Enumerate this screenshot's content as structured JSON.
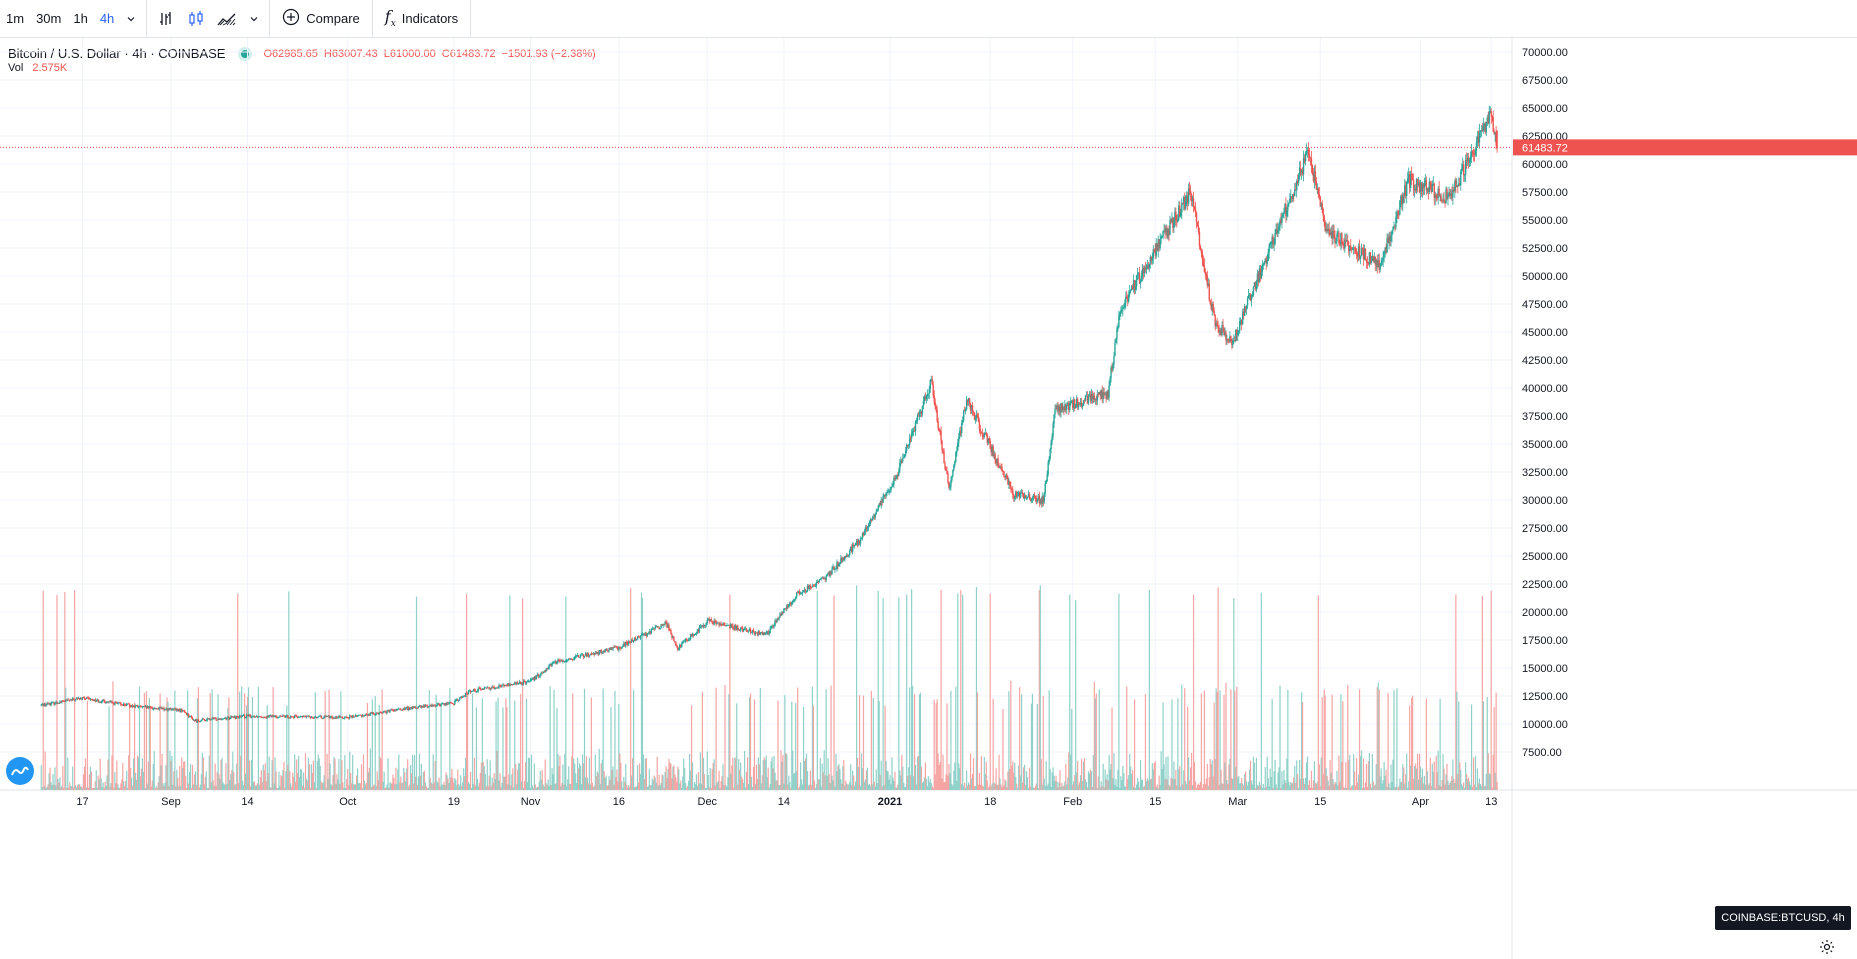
{
  "toolbar": {
    "timeframes": [
      "1m",
      "30m",
      "1h",
      "4h"
    ],
    "active_timeframe": "4h",
    "compare_label": "Compare",
    "indicators_label": "Indicators",
    "icons": [
      "chevron-down-icon",
      "bar-chart-icon",
      "candles-icon",
      "area-chart-icon",
      "chevron-down-icon",
      "plus-circle-icon",
      "fx-icon"
    ]
  },
  "legend": {
    "symbol": "Bitcoin / U.S. Dollar · 4h · COINBASE",
    "o_label": "O",
    "o": "62985.65",
    "h_label": "H",
    "h": "63007.43",
    "l_label": "L",
    "l": "61000.00",
    "c_label": "C",
    "c": "61483.72",
    "change": "−1501.93 (−2.38%)",
    "vol_label": "Vol",
    "vol": "2.575K"
  },
  "colors": {
    "up": "#26a69a",
    "down": "#ef5350",
    "up_vol": "#8fd1c9",
    "down_vol": "#f5a5a3",
    "price_label_bg": "#ef5350",
    "grid": "#f0f3fa"
  },
  "tooltip": "COINBASE:BTCUSD, 4h",
  "chart_data": {
    "type": "candlestick",
    "title": "Bitcoin / U.S. Dollar · 4h · COINBASE",
    "ylim": [
      6250,
      71250
    ],
    "y_ticks": [
      "70000.00",
      "67500.00",
      "65000.00",
      "62500.00",
      "60000.00",
      "57500.00",
      "55000.00",
      "52500.00",
      "50000.00",
      "47500.00",
      "45000.00",
      "42500.00",
      "40000.00",
      "37500.00",
      "35000.00",
      "32500.00",
      "30000.00",
      "27500.00",
      "25000.00",
      "22500.00",
      "20000.00",
      "17500.00",
      "15000.00",
      "12500.00",
      "10000.00",
      "7500.00"
    ],
    "x_ticks": [
      "17",
      "Sep",
      "14",
      "Oct",
      "19",
      "Nov",
      "16",
      "Dec",
      "14",
      "2021",
      "18",
      "Feb",
      "15",
      "Mar",
      "15",
      "Apr",
      "13"
    ],
    "last_price": "61483.72",
    "close_series": {
      "name": "BTCUSD",
      "approx_path": [
        [
          "2020-08-10",
          11700
        ],
        [
          "2020-08-17",
          12300
        ],
        [
          "2020-08-27",
          11500
        ],
        [
          "2020-09-03",
          11200
        ],
        [
          "2020-09-05",
          10300
        ],
        [
          "2020-09-14",
          10700
        ],
        [
          "2020-10-01",
          10600
        ],
        [
          "2020-10-10",
          11300
        ],
        [
          "2020-10-19",
          11900
        ],
        [
          "2020-10-22",
          13000
        ],
        [
          "2020-11-01",
          13800
        ],
        [
          "2020-11-05",
          15500
        ],
        [
          "2020-11-16",
          16800
        ],
        [
          "2020-11-24",
          19000
        ],
        [
          "2020-11-26",
          16800
        ],
        [
          "2020-12-01",
          19200
        ],
        [
          "2020-12-11",
          18000
        ],
        [
          "2020-12-16",
          21500
        ],
        [
          "2020-12-21",
          23000
        ],
        [
          "2020-12-27",
          26500
        ],
        [
          "2021-01-02",
          32000
        ],
        [
          "2021-01-08",
          40500
        ],
        [
          "2021-01-11",
          31000
        ],
        [
          "2021-01-14",
          39000
        ],
        [
          "2021-01-22",
          30500
        ],
        [
          "2021-01-27",
          30000
        ],
        [
          "2021-01-29",
          38000
        ],
        [
          "2021-02-07",
          39500
        ],
        [
          "2021-02-09",
          47000
        ],
        [
          "2021-02-21",
          57500
        ],
        [
          "2021-02-25",
          46000
        ],
        [
          "2021-02-28",
          44000
        ],
        [
          "2021-03-13",
          61000
        ],
        [
          "2021-03-16",
          54000
        ],
        [
          "2021-03-25",
          51000
        ],
        [
          "2021-03-30",
          58500
        ],
        [
          "2021-04-06",
          57000
        ],
        [
          "2021-04-13",
          64500
        ],
        [
          "2021-04-14",
          61483.72
        ]
      ]
    },
    "volume_scale_note": "volume pane at bottom, bars colored by candle direction"
  }
}
